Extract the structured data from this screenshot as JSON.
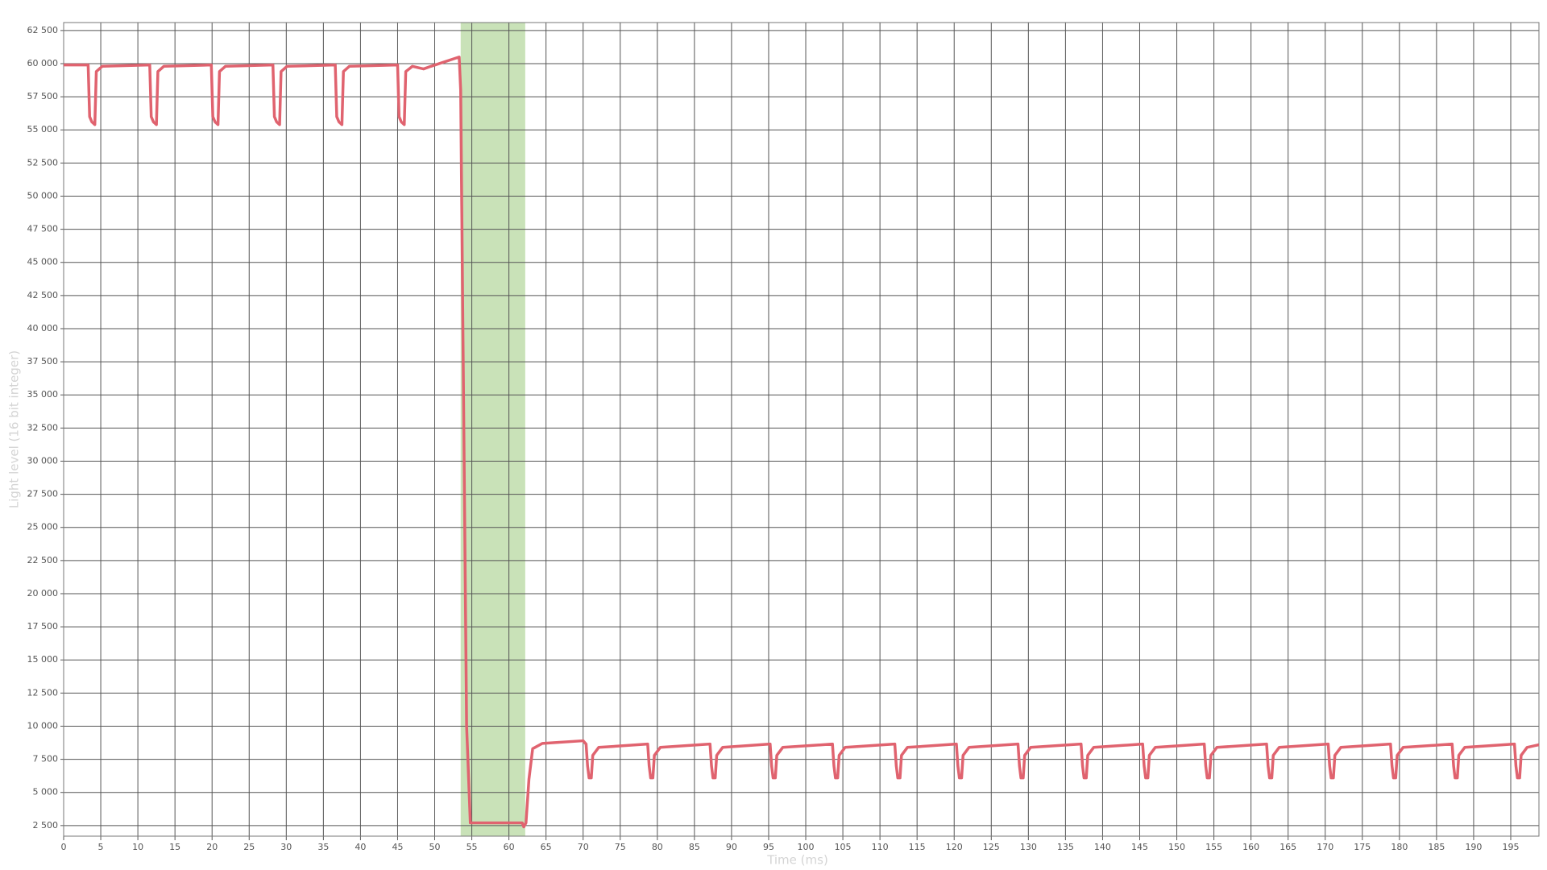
{
  "chart_data": {
    "type": "line",
    "x_label": "Time (ms)",
    "y_label": "Light level (16 bit integer)",
    "color": "#e0636f",
    "grid": true,
    "highlight": {
      "x": [
        53.5,
        62.2
      ],
      "color": "#c9e2b8"
    },
    "xlim": [
      0,
      198.8
    ],
    "ylim": [
      1700,
      63100
    ],
    "xticks": [
      0,
      5,
      10,
      15,
      20,
      25,
      30,
      35,
      40,
      45,
      50,
      55,
      60,
      65,
      70,
      75,
      80,
      85,
      90,
      95,
      100,
      105,
      110,
      115,
      120,
      125,
      130,
      135,
      140,
      145,
      150,
      155,
      160,
      165,
      170,
      175,
      180,
      185,
      190,
      195
    ],
    "yticks": [
      {
        "value": 2500,
        "label": "2 500"
      },
      {
        "value": 5000,
        "label": "5 000"
      },
      {
        "value": 7500,
        "label": "7 500"
      },
      {
        "value": 10000,
        "label": "10 000"
      },
      {
        "value": 12500,
        "label": "12 500"
      },
      {
        "value": 15000,
        "label": "15 000"
      },
      {
        "value": 17500,
        "label": "17 500"
      },
      {
        "value": 20000,
        "label": "20 000"
      },
      {
        "value": 22500,
        "label": "22 500"
      },
      {
        "value": 25000,
        "label": "25 000"
      },
      {
        "value": 27500,
        "label": "27 500"
      },
      {
        "value": 30000,
        "label": "30 000"
      },
      {
        "value": 32500,
        "label": "32 500"
      },
      {
        "value": 35000,
        "label": "35 000"
      },
      {
        "value": 37500,
        "label": "37 500"
      },
      {
        "value": 40000,
        "label": "40 000"
      },
      {
        "value": 42500,
        "label": "42 500"
      },
      {
        "value": 45000,
        "label": "45 000"
      },
      {
        "value": 47500,
        "label": "47 500"
      },
      {
        "value": 50000,
        "label": "50 000"
      },
      {
        "value": 52500,
        "label": "52 500"
      },
      {
        "value": 55000,
        "label": "55 000"
      },
      {
        "value": 57500,
        "label": "57 500"
      },
      {
        "value": 60000,
        "label": "60 000"
      },
      {
        "value": 62500,
        "label": "62 500"
      }
    ],
    "x": [
      0,
      3.3,
      3.5,
      3.8,
      4.2,
      4.4,
      5.2,
      11.6,
      11.8,
      12.1,
      12.5,
      12.7,
      13.5,
      19.9,
      20.1,
      20.4,
      20.8,
      21.0,
      21.8,
      28.2,
      28.4,
      28.7,
      29.1,
      29.3,
      30.1,
      36.6,
      36.8,
      37.1,
      37.5,
      37.7,
      38.5,
      45.0,
      45.2,
      45.5,
      45.9,
      46.1,
      47.0,
      48.5,
      49.5,
      53.3,
      53.5,
      54.3,
      54.8,
      61.8,
      62.0,
      62.3,
      62.7,
      63.2,
      64.5,
      70.0,
      70.4,
      70.6,
      70.8,
      71.1,
      71.3,
      72.1,
      78.7,
      78.9,
      79.1,
      79.4,
      79.6,
      80.4,
      87.1,
      87.3,
      87.5,
      87.8,
      88.0,
      88.8,
      95.2,
      95.4,
      95.6,
      95.9,
      96.1,
      96.9,
      103.6,
      103.8,
      104.0,
      104.3,
      104.5,
      105.3,
      112.0,
      112.2,
      112.4,
      112.7,
      112.9,
      113.7,
      120.3,
      120.5,
      120.7,
      121.0,
      121.2,
      122.0,
      128.6,
      128.8,
      129.0,
      129.3,
      129.5,
      130.3,
      137.1,
      137.3,
      137.5,
      137.8,
      138.0,
      138.8,
      145.4,
      145.6,
      145.8,
      146.1,
      146.3,
      147.1,
      153.7,
      153.9,
      154.1,
      154.4,
      154.6,
      155.4,
      162.1,
      162.3,
      162.5,
      162.8,
      163.0,
      163.8,
      170.4,
      170.6,
      170.8,
      171.1,
      171.3,
      172.1,
      178.8,
      179.0,
      179.2,
      179.5,
      179.7,
      180.5,
      187.1,
      187.3,
      187.5,
      187.8,
      188.0,
      188.8,
      195.5,
      195.7,
      195.9,
      196.2,
      196.4,
      197.2,
      198.8
    ],
    "values": [
      59900,
      59900,
      56000,
      55600,
      55400,
      59400,
      59800,
      59900,
      56000,
      55600,
      55400,
      59400,
      59800,
      59900,
      56000,
      55600,
      55400,
      59400,
      59800,
      59900,
      56000,
      55600,
      55400,
      59400,
      59800,
      59900,
      56000,
      55600,
      55400,
      59400,
      59800,
      59900,
      56000,
      55600,
      55400,
      59400,
      59800,
      59600,
      59800,
      60500,
      58000,
      10000,
      2700,
      2700,
      2400,
      2700,
      6000,
      8300,
      8700,
      8900,
      8650,
      7000,
      6100,
      6100,
      7800,
      8400,
      8650,
      7000,
      6100,
      6100,
      7800,
      8400,
      8650,
      7000,
      6100,
      6100,
      7800,
      8400,
      8650,
      7000,
      6100,
      6100,
      7800,
      8400,
      8650,
      7000,
      6100,
      6100,
      7800,
      8400,
      8650,
      7000,
      6100,
      6100,
      7800,
      8400,
      8650,
      7000,
      6100,
      6100,
      7800,
      8400,
      8650,
      7000,
      6100,
      6100,
      7800,
      8400,
      8650,
      7000,
      6100,
      6100,
      7800,
      8400,
      8650,
      7000,
      6100,
      6100,
      7800,
      8400,
      8650,
      7000,
      6100,
      6100,
      7800,
      8400,
      8650,
      7000,
      6100,
      6100,
      7800,
      8400,
      8650,
      7000,
      6100,
      6100,
      7800,
      8400,
      8650,
      7000,
      6100,
      6100,
      7800,
      8400,
      8650,
      7000,
      6100,
      6100,
      7800,
      8400,
      8650,
      7000,
      6100,
      6100,
      7800,
      8400,
      8600
    ]
  }
}
